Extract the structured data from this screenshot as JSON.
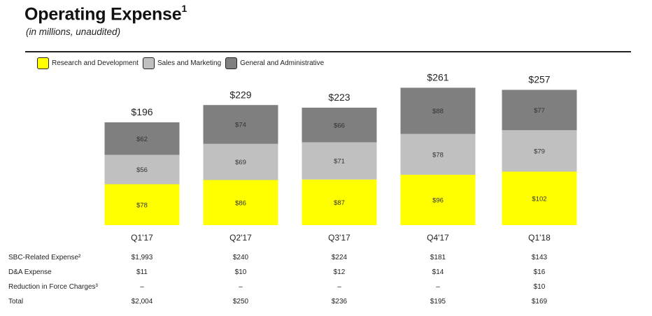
{
  "header": {
    "title": "Operating Expense",
    "title_sup": "1",
    "subtitle": "(in millions, unaudited)"
  },
  "colors": {
    "research": "#ffff00",
    "sales": "#c0c0c0",
    "general": "#7f7f7f",
    "rule": "#222222"
  },
  "legend": [
    {
      "label": "Research and Development",
      "color": "#ffff00"
    },
    {
      "label": "Sales and Marketing",
      "color": "#c0c0c0"
    },
    {
      "label": "General and Administrative",
      "color": "#7f7f7f"
    }
  ],
  "chart_data": {
    "type": "bar",
    "stacked": true,
    "categories": [
      "Q1'17",
      "Q2'17",
      "Q3'17",
      "Q4'17",
      "Q1'18"
    ],
    "series": [
      {
        "name": "Research and Development",
        "values": [
          78,
          86,
          87,
          96,
          102
        ],
        "labels": [
          "$78",
          "$86",
          "$87",
          "$96",
          "$102"
        ]
      },
      {
        "name": "Sales and Marketing",
        "values": [
          56,
          69,
          71,
          78,
          79
        ],
        "labels": [
          "$56",
          "$69",
          "$71",
          "$78",
          "$79"
        ]
      },
      {
        "name": "General and Administrative",
        "values": [
          62,
          74,
          66,
          88,
          77
        ],
        "labels": [
          "$62",
          "$74",
          "$66",
          "$88",
          "$77"
        ]
      }
    ],
    "totals": [
      196,
      229,
      223,
      261,
      257
    ],
    "total_labels": [
      "$196",
      "$229",
      "$223",
      "$261",
      "$257"
    ]
  },
  "table": {
    "rows": [
      {
        "label": "SBC-Related Expense²",
        "values": [
          "$1,993",
          "$240",
          "$224",
          "$181",
          "$143"
        ]
      },
      {
        "label": "D&A Expense",
        "values": [
          "$11",
          "$10",
          "$12",
          "$14",
          "$16"
        ]
      },
      {
        "label": "Reduction in Force Charges³",
        "values": [
          "–",
          "–",
          "–",
          "–",
          "$10"
        ]
      },
      {
        "label": "Total",
        "values": [
          "$2,004",
          "$250",
          "$236",
          "$195",
          "$169"
        ]
      }
    ]
  }
}
